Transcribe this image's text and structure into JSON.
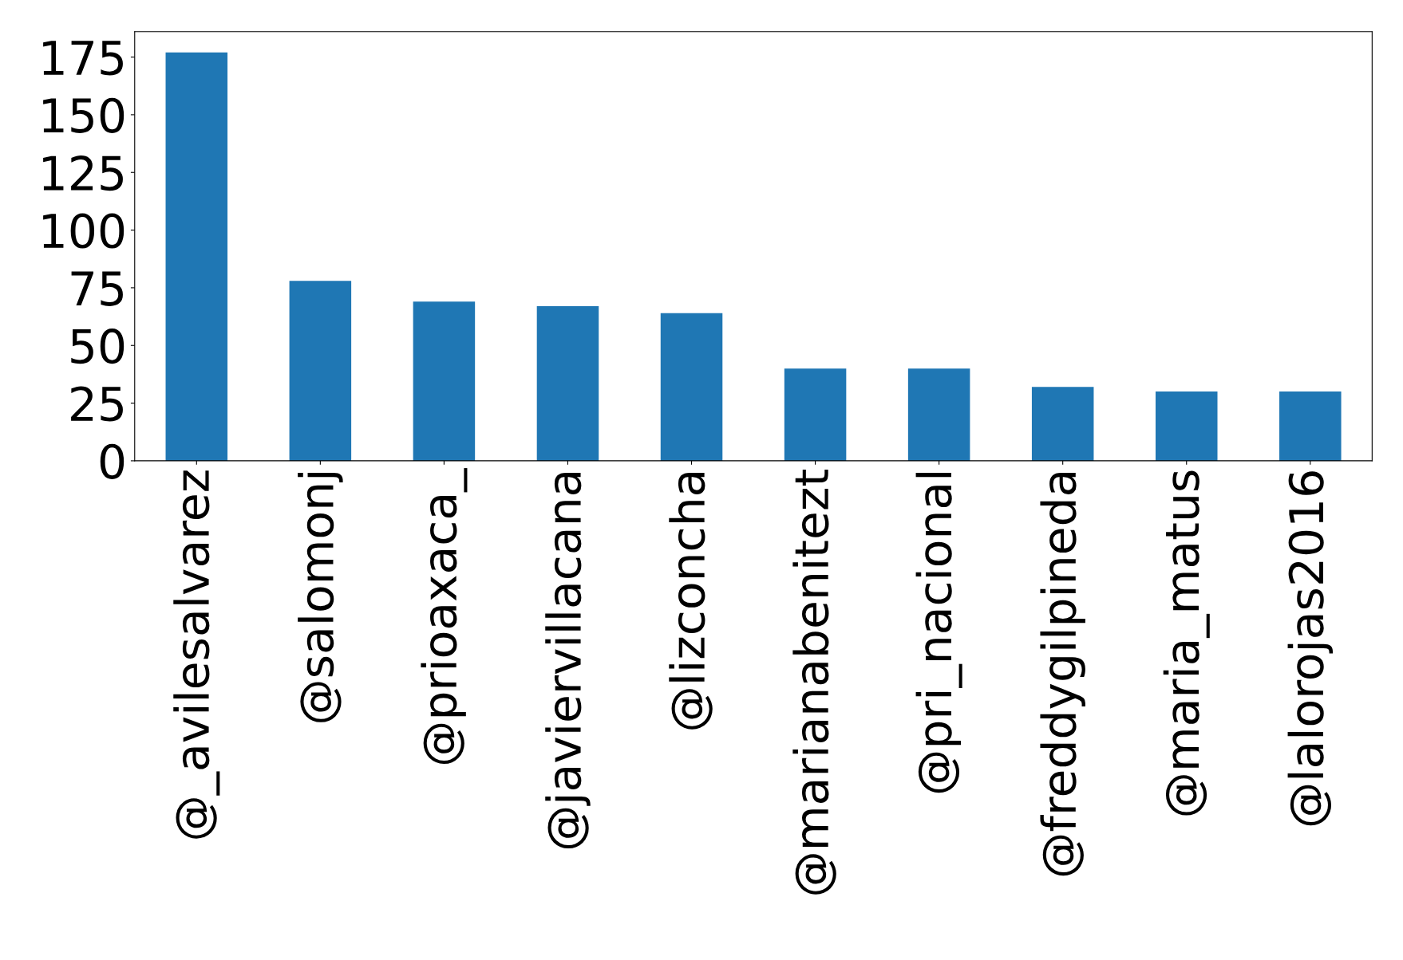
{
  "chart_data": {
    "type": "bar",
    "categories": [
      "@_avilesalvarez",
      "@salomonj",
      "@prioaxaca_",
      "@javiervillacana",
      "@lizconcha",
      "@marianabenitezt",
      "@pri_nacional",
      "@freddygilpineda",
      "@maria_matus",
      "@lalorojas2016"
    ],
    "values": [
      177,
      78,
      69,
      67,
      64,
      40,
      40,
      32,
      30,
      30
    ],
    "color": "#1f77b4",
    "ylim": [
      0,
      186
    ],
    "yticks": [
      0,
      25,
      50,
      75,
      100,
      125,
      150,
      175
    ],
    "grid": false
  }
}
